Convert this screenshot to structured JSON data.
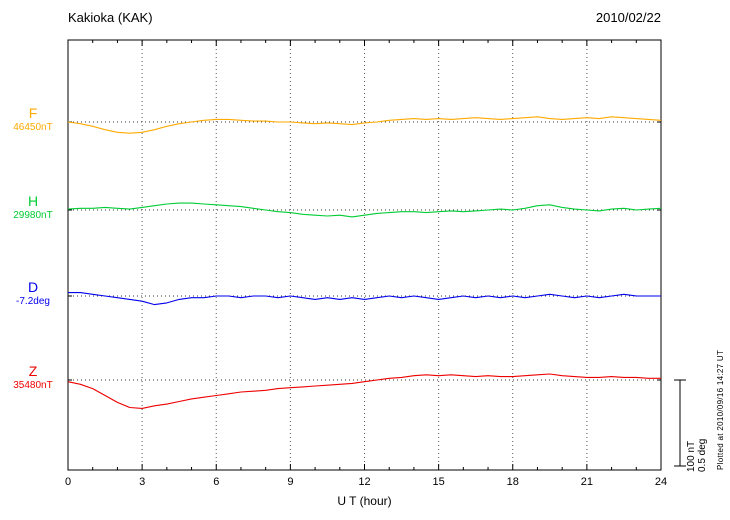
{
  "header": {
    "title": "Kakioka (KAK)",
    "date": "2010/02/22"
  },
  "x_axis": {
    "label": "U T (hour)",
    "ticks": [
      0,
      3,
      6,
      9,
      12,
      15,
      18,
      21,
      24
    ]
  },
  "scale_bar": {
    "nt_label": "100 nT",
    "deg_label": "0.5 deg"
  },
  "plotted_note": "Plotted at 2010/09/16 14:27 UT",
  "chart_data": {
    "type": "line",
    "title": "Kakioka (KAK) magnetogram for 2010/02/22",
    "xlabel": "U T (hour)",
    "xlim": [
      0,
      24
    ],
    "x_start": 0,
    "x_step": 0.5,
    "grid": "dotted vertical every 3 hours, dotted horizontal baseline per trace",
    "scale": {
      "nT_per_bar": 100,
      "deg_per_bar": 0.5
    },
    "series": [
      {
        "name": "F",
        "baseline_label": "46450nT",
        "unit": "nT",
        "color": "#ffaa00",
        "values": [
          0,
          -2,
          -5,
          -9,
          -12,
          -13,
          -12,
          -9,
          -5,
          -2,
          0,
          2,
          3,
          3,
          2,
          1,
          1,
          0,
          0,
          -1,
          -2,
          -1,
          -2,
          -3,
          -1,
          0,
          2,
          3,
          4,
          3,
          4,
          3,
          4,
          5,
          4,
          3,
          4,
          5,
          6,
          4,
          3,
          4,
          5,
          4,
          6,
          5,
          4,
          3,
          2
        ]
      },
      {
        "name": "H",
        "baseline_label": "29980nT",
        "unit": "nT",
        "color": "#00cc33",
        "values": [
          1,
          2,
          2,
          3,
          2,
          1,
          3,
          5,
          7,
          8,
          8,
          7,
          6,
          5,
          4,
          2,
          0,
          -2,
          -3,
          -5,
          -6,
          -7,
          -6,
          -8,
          -6,
          -4,
          -3,
          -2,
          -2,
          -3,
          -2,
          -1,
          -2,
          -1,
          0,
          1,
          0,
          2,
          5,
          6,
          3,
          1,
          0,
          -1,
          1,
          2,
          0,
          1,
          2
        ]
      },
      {
        "name": "D",
        "baseline_label": "-7.2deg",
        "unit": "deg",
        "color": "#0000ee",
        "values": [
          0.02,
          0.02,
          0.01,
          0,
          -0.01,
          -0.02,
          -0.03,
          -0.05,
          -0.04,
          -0.02,
          -0.01,
          -0.01,
          0,
          0,
          -0.01,
          0,
          0,
          -0.01,
          0,
          -0.01,
          -0.02,
          -0.01,
          -0.02,
          -0.01,
          -0.02,
          -0.01,
          0,
          -0.01,
          0,
          -0.01,
          -0.02,
          -0.01,
          0,
          -0.01,
          0,
          -0.01,
          0,
          -0.01,
          0,
          0.01,
          0,
          -0.01,
          0,
          -0.01,
          0,
          0.01,
          0,
          0,
          0
        ]
      },
      {
        "name": "Z",
        "baseline_label": "35480nT",
        "unit": "nT",
        "color": "#ee0000",
        "values": [
          -2,
          -5,
          -10,
          -18,
          -26,
          -32,
          -33,
          -30,
          -28,
          -25,
          -22,
          -20,
          -18,
          -16,
          -14,
          -13,
          -12,
          -10,
          -9,
          -8,
          -7,
          -6,
          -5,
          -4,
          -2,
          0,
          2,
          3,
          5,
          6,
          5,
          6,
          5,
          4,
          5,
          4,
          4,
          5,
          6,
          7,
          5,
          4,
          3,
          3,
          4,
          3,
          3,
          2,
          2
        ]
      }
    ]
  }
}
